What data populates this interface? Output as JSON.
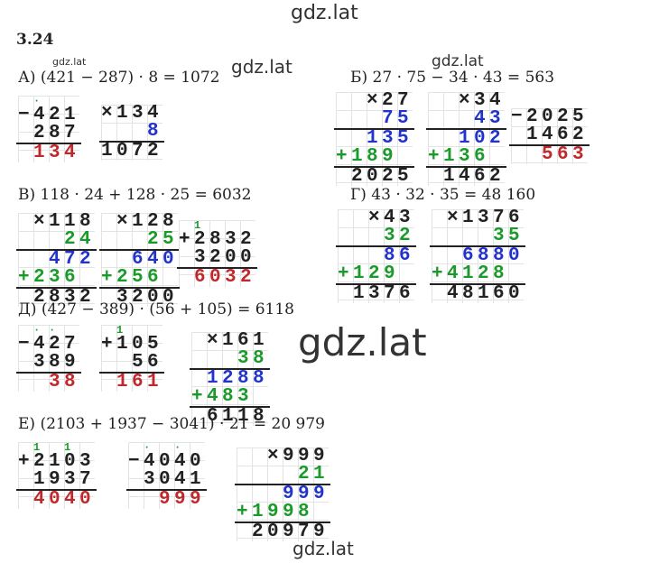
{
  "header": {
    "watermark": "gdz.lat",
    "number": "3.24"
  },
  "watermarks": [
    "gdz.lat",
    "gdz.lat",
    "gdz.lat",
    "gdz.lat",
    "gdz.lat"
  ],
  "problems": [
    {
      "label": "А) (421 − 287) · 8 = 1072",
      "computations": [
        {
          "rows": [
            {
              "text": " ·  ",
              "color": "#1a9a2a",
              "carry": true
            },
            {
              "text": "−421",
              "color": "#222222"
            },
            {
              "text": " 287",
              "color": "#222222"
            },
            {
              "text": " 134",
              "color": "#c0282c"
            }
          ]
        },
        {
          "rows": [
            {
              "text": "×134",
              "color": "#222222"
            },
            {
              "text": "   8",
              "color": "#2233cc"
            },
            {
              "text": "1072",
              "color": "#222222"
            }
          ]
        }
      ]
    },
    {
      "label": "Б) 27 · 75 − 34 · 43 = 563",
      "computations": [
        {
          "rows": [
            {
              "text": "  ×27",
              "color": "#222222"
            },
            {
              "text": "   75",
              "color": "#2233cc"
            },
            {
              "text": "  135",
              "color": "#2233cc"
            },
            {
              "text": "+189 ",
              "color": "#1a9a2a"
            },
            {
              "text": " 2025",
              "color": "#222222"
            }
          ]
        },
        {
          "rows": [
            {
              "text": "  ×34",
              "color": "#222222"
            },
            {
              "text": "   43",
              "color": "#2233cc"
            },
            {
              "text": "  102",
              "color": "#2233cc"
            },
            {
              "text": "+136 ",
              "color": "#1a9a2a"
            },
            {
              "text": " 1462",
              "color": "#222222"
            }
          ]
        },
        {
          "rows": [
            {
              "text": "−2025",
              "color": "#222222"
            },
            {
              "text": " 1462",
              "color": "#222222"
            },
            {
              "text": "  563",
              "color": "#c0282c"
            }
          ]
        }
      ]
    },
    {
      "label": "В) 118 · 24 + 128 · 25 = 6032",
      "computations": [
        {
          "rows": [
            {
              "text": " ×118",
              "color": "#222222"
            },
            {
              "text": "   24",
              "color": "#1a9a2a"
            },
            {
              "text": "  472",
              "color": "#2233cc"
            },
            {
              "text": "+236 ",
              "color": "#1a9a2a"
            },
            {
              "text": " 2832",
              "color": "#222222"
            }
          ]
        },
        {
          "rows": [
            {
              "text": " ×128",
              "color": "#222222"
            },
            {
              "text": "   25",
              "color": "#1a9a2a"
            },
            {
              "text": "  640",
              "color": "#2233cc"
            },
            {
              "text": "+256 ",
              "color": "#1a9a2a"
            },
            {
              "text": " 3200",
              "color": "#222222"
            }
          ]
        },
        {
          "rows": [
            {
              "text": " 1   ",
              "color": "#1a9a2a",
              "carry": true
            },
            {
              "text": "+2832",
              "color": "#222222"
            },
            {
              "text": " 3200",
              "color": "#222222"
            },
            {
              "text": " 6032",
              "color": "#c0282c"
            }
          ]
        }
      ]
    },
    {
      "label": "Г) 43 · 32 · 35 = 48 160",
      "computations": [
        {
          "rows": [
            {
              "text": "  ×43",
              "color": "#222222"
            },
            {
              "text": "   32",
              "color": "#1a9a2a"
            },
            {
              "text": "   86",
              "color": "#2233cc"
            },
            {
              "text": "+129 ",
              "color": "#1a9a2a"
            },
            {
              "text": " 1376",
              "color": "#222222"
            }
          ]
        },
        {
          "rows": [
            {
              "text": " ×1376",
              "color": "#222222"
            },
            {
              "text": "    35",
              "color": "#1a9a2a"
            },
            {
              "text": "  6880",
              "color": "#2233cc"
            },
            {
              "text": "+4128 ",
              "color": "#1a9a2a"
            },
            {
              "text": " 48160",
              "color": "#222222"
            }
          ]
        }
      ]
    },
    {
      "label": "Д) (427 − 389) · (56 + 105) = 6118",
      "computations": [
        {
          "rows": [
            {
              "text": " ·· ",
              "color": "#1a9a2a",
              "carry": true
            },
            {
              "text": "−427",
              "color": "#222222"
            },
            {
              "text": " 389",
              "color": "#222222"
            },
            {
              "text": "  38",
              "color": "#c0282c"
            }
          ]
        },
        {
          "rows": [
            {
              "text": " 1  ",
              "color": "#1a9a2a",
              "carry": true
            },
            {
              "text": "+105",
              "color": "#222222"
            },
            {
              "text": "  56",
              "color": "#222222"
            },
            {
              "text": " 161",
              "color": "#c0282c"
            }
          ]
        },
        {
          "rows": [
            {
              "text": " ×161",
              "color": "#222222"
            },
            {
              "text": "   38",
              "color": "#1a9a2a"
            },
            {
              "text": " 1288",
              "color": "#2233cc"
            },
            {
              "text": "+483 ",
              "color": "#1a9a2a"
            },
            {
              "text": " 6118",
              "color": "#222222"
            }
          ]
        }
      ]
    },
    {
      "label": "Е) (2103 + 1937 − 3041) · 21 = 20 979",
      "computations": [
        {
          "rows": [
            {
              "text": " 1 1",
              "color": "#1a9a2a",
              "carry": true
            },
            {
              "text": "+2103",
              "color": "#222222"
            },
            {
              "text": " 1937",
              "color": "#222222"
            },
            {
              "text": " 4040",
              "color": "#c0282c"
            }
          ]
        },
        {
          "rows": [
            {
              "text": " · · ",
              "color": "#1a9a2a",
              "carry": true
            },
            {
              "text": "−4040",
              "color": "#222222"
            },
            {
              "text": " 3041",
              "color": "#222222"
            },
            {
              "text": "  999",
              "color": "#c0282c"
            }
          ]
        },
        {
          "rows": [
            {
              "text": "  ×999",
              "color": "#222222"
            },
            {
              "text": "    21",
              "color": "#1a9a2a"
            },
            {
              "text": "   999",
              "color": "#2233cc"
            },
            {
              "text": "+1998 ",
              "color": "#1a9a2a"
            },
            {
              "text": " 20979",
              "color": "#222222"
            }
          ]
        }
      ]
    }
  ]
}
